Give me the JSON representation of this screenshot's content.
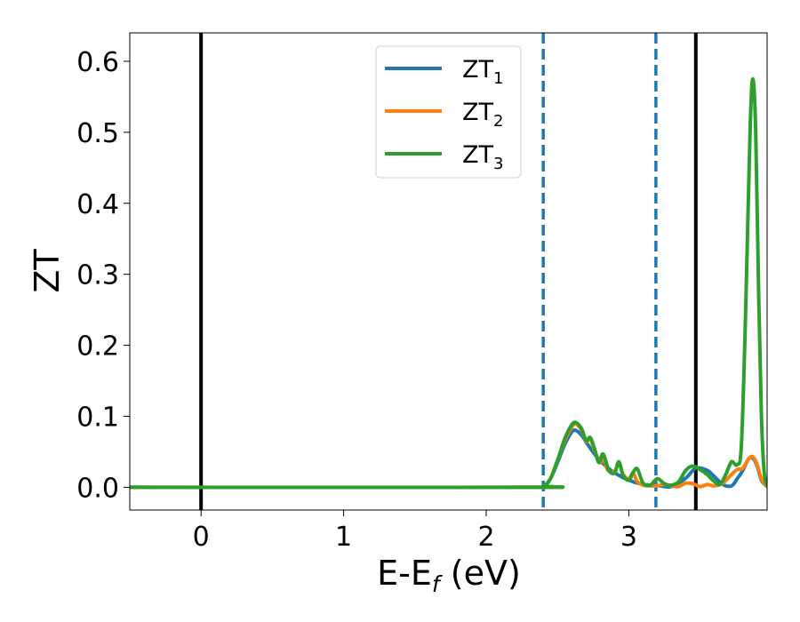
{
  "chart_data": {
    "type": "line",
    "xlabel_main": "E-E",
    "xlabel_sub": "f",
    "xlabel_unit": " (eV)",
    "ylabel": "ZT",
    "xlim": [
      -0.5,
      3.97
    ],
    "ylim": [
      -0.032,
      0.64
    ],
    "x_ticks": [
      0,
      1,
      2,
      3
    ],
    "x_tick_labels": [
      "0",
      "1",
      "2",
      "3"
    ],
    "y_ticks": [
      0.0,
      0.1,
      0.2,
      0.3,
      0.4,
      0.5,
      0.6
    ],
    "y_tick_labels": [
      "0.0",
      "0.1",
      "0.2",
      "0.3",
      "0.4",
      "0.5",
      "0.6"
    ],
    "grid": false,
    "legend_position": "top-center",
    "vertical_lines": [
      {
        "x": 0.0,
        "style": "solid",
        "color": "#000000"
      },
      {
        "x": 3.47,
        "style": "solid",
        "color": "#000000"
      },
      {
        "x": 2.4,
        "style": "dashed",
        "color": "#1f77b4"
      },
      {
        "x": 3.19,
        "style": "dashed",
        "color": "#1f77b4"
      }
    ],
    "series": [
      {
        "name": "ZT",
        "subscript": "1",
        "color": "#1f77b4",
        "points": [
          [
            -0.5,
            0
          ],
          [
            2.3,
            0
          ],
          [
            2.4,
            0.002
          ],
          [
            2.45,
            0.012
          ],
          [
            2.5,
            0.035
          ],
          [
            2.55,
            0.06
          ],
          [
            2.6,
            0.078
          ],
          [
            2.63,
            0.08
          ],
          [
            2.67,
            0.073
          ],
          [
            2.72,
            0.058
          ],
          [
            2.78,
            0.042
          ],
          [
            2.85,
            0.028
          ],
          [
            2.92,
            0.018
          ],
          [
            3.0,
            0.01
          ],
          [
            3.08,
            0.005
          ],
          [
            3.15,
            0.003
          ],
          [
            3.22,
            0.002
          ],
          [
            3.3,
            0.001
          ],
          [
            3.4,
            0.013
          ],
          [
            3.47,
            0.027
          ],
          [
            3.55,
            0.024
          ],
          [
            3.6,
            0.015
          ],
          [
            3.66,
            0.004
          ],
          [
            3.72,
            0.002
          ],
          [
            3.76,
            0.012
          ],
          [
            3.8,
            0.024
          ],
          [
            3.84,
            0.04
          ],
          [
            3.87,
            0.041
          ],
          [
            3.9,
            0.03
          ],
          [
            3.93,
            0.01
          ],
          [
            3.97,
            0.001
          ]
        ]
      },
      {
        "name": "ZT",
        "subscript": "2",
        "color": "#ff7f0e",
        "points": [
          [
            -0.5,
            0
          ],
          [
            2.3,
            0
          ],
          [
            2.4,
            0.002
          ],
          [
            2.45,
            0.012
          ],
          [
            2.5,
            0.038
          ],
          [
            2.55,
            0.065
          ],
          [
            2.6,
            0.085
          ],
          [
            2.63,
            0.089
          ],
          [
            2.67,
            0.08
          ],
          [
            2.7,
            0.065
          ],
          [
            2.73,
            0.068
          ],
          [
            2.76,
            0.052
          ],
          [
            2.8,
            0.035
          ],
          [
            2.82,
            0.045
          ],
          [
            2.85,
            0.025
          ],
          [
            2.9,
            0.022
          ],
          [
            2.93,
            0.035
          ],
          [
            2.96,
            0.018
          ],
          [
            3.0,
            0.012
          ],
          [
            3.03,
            0.02
          ],
          [
            3.06,
            0.008
          ],
          [
            3.1,
            0.003
          ],
          [
            3.15,
            0.002
          ],
          [
            3.2,
            0.002
          ],
          [
            3.25,
            0.004
          ],
          [
            3.3,
            0.002
          ],
          [
            3.35,
            0.001
          ],
          [
            3.4,
            0.006
          ],
          [
            3.45,
            0.005
          ],
          [
            3.5,
            0.001
          ],
          [
            3.55,
            0.004
          ],
          [
            3.6,
            0.002
          ],
          [
            3.66,
            0.006
          ],
          [
            3.72,
            0.018
          ],
          [
            3.76,
            0.025
          ],
          [
            3.8,
            0.027
          ],
          [
            3.84,
            0.04
          ],
          [
            3.87,
            0.043
          ],
          [
            3.9,
            0.032
          ],
          [
            3.93,
            0.012
          ],
          [
            3.97,
            0.001
          ]
        ]
      },
      {
        "name": "ZT",
        "subscript": "3",
        "color": "#2ca02c",
        "points": [
          [
            -0.5,
            0
          ],
          [
            2.3,
            0
          ],
          [
            2.4,
            0.002
          ],
          [
            2.45,
            0.012
          ],
          [
            2.5,
            0.038
          ],
          [
            2.55,
            0.068
          ],
          [
            2.6,
            0.088
          ],
          [
            2.63,
            0.091
          ],
          [
            2.67,
            0.082
          ],
          [
            2.7,
            0.066
          ],
          [
            2.73,
            0.07
          ],
          [
            2.76,
            0.054
          ],
          [
            2.79,
            0.035
          ],
          [
            2.82,
            0.047
          ],
          [
            2.86,
            0.024
          ],
          [
            2.9,
            0.02
          ],
          [
            2.93,
            0.036
          ],
          [
            2.96,
            0.017
          ],
          [
            3.0,
            0.01
          ],
          [
            3.03,
            0.021
          ],
          [
            3.06,
            0.026
          ],
          [
            3.1,
            0.006
          ],
          [
            3.15,
            0.003
          ],
          [
            3.2,
            0.012
          ],
          [
            3.25,
            0.005
          ],
          [
            3.3,
            0.003
          ],
          [
            3.35,
            0.008
          ],
          [
            3.4,
            0.024
          ],
          [
            3.45,
            0.03
          ],
          [
            3.5,
            0.025
          ],
          [
            3.55,
            0.018
          ],
          [
            3.6,
            0.008
          ],
          [
            3.64,
            0.004
          ],
          [
            3.68,
            0.018
          ],
          [
            3.72,
            0.036
          ],
          [
            3.76,
            0.032
          ],
          [
            3.79,
            0.06
          ],
          [
            3.82,
            0.25
          ],
          [
            3.85,
            0.5
          ],
          [
            3.87,
            0.575
          ],
          [
            3.89,
            0.5
          ],
          [
            3.91,
            0.28
          ],
          [
            3.93,
            0.1
          ],
          [
            3.95,
            0.02
          ],
          [
            3.97,
            0.003
          ]
        ]
      }
    ]
  }
}
